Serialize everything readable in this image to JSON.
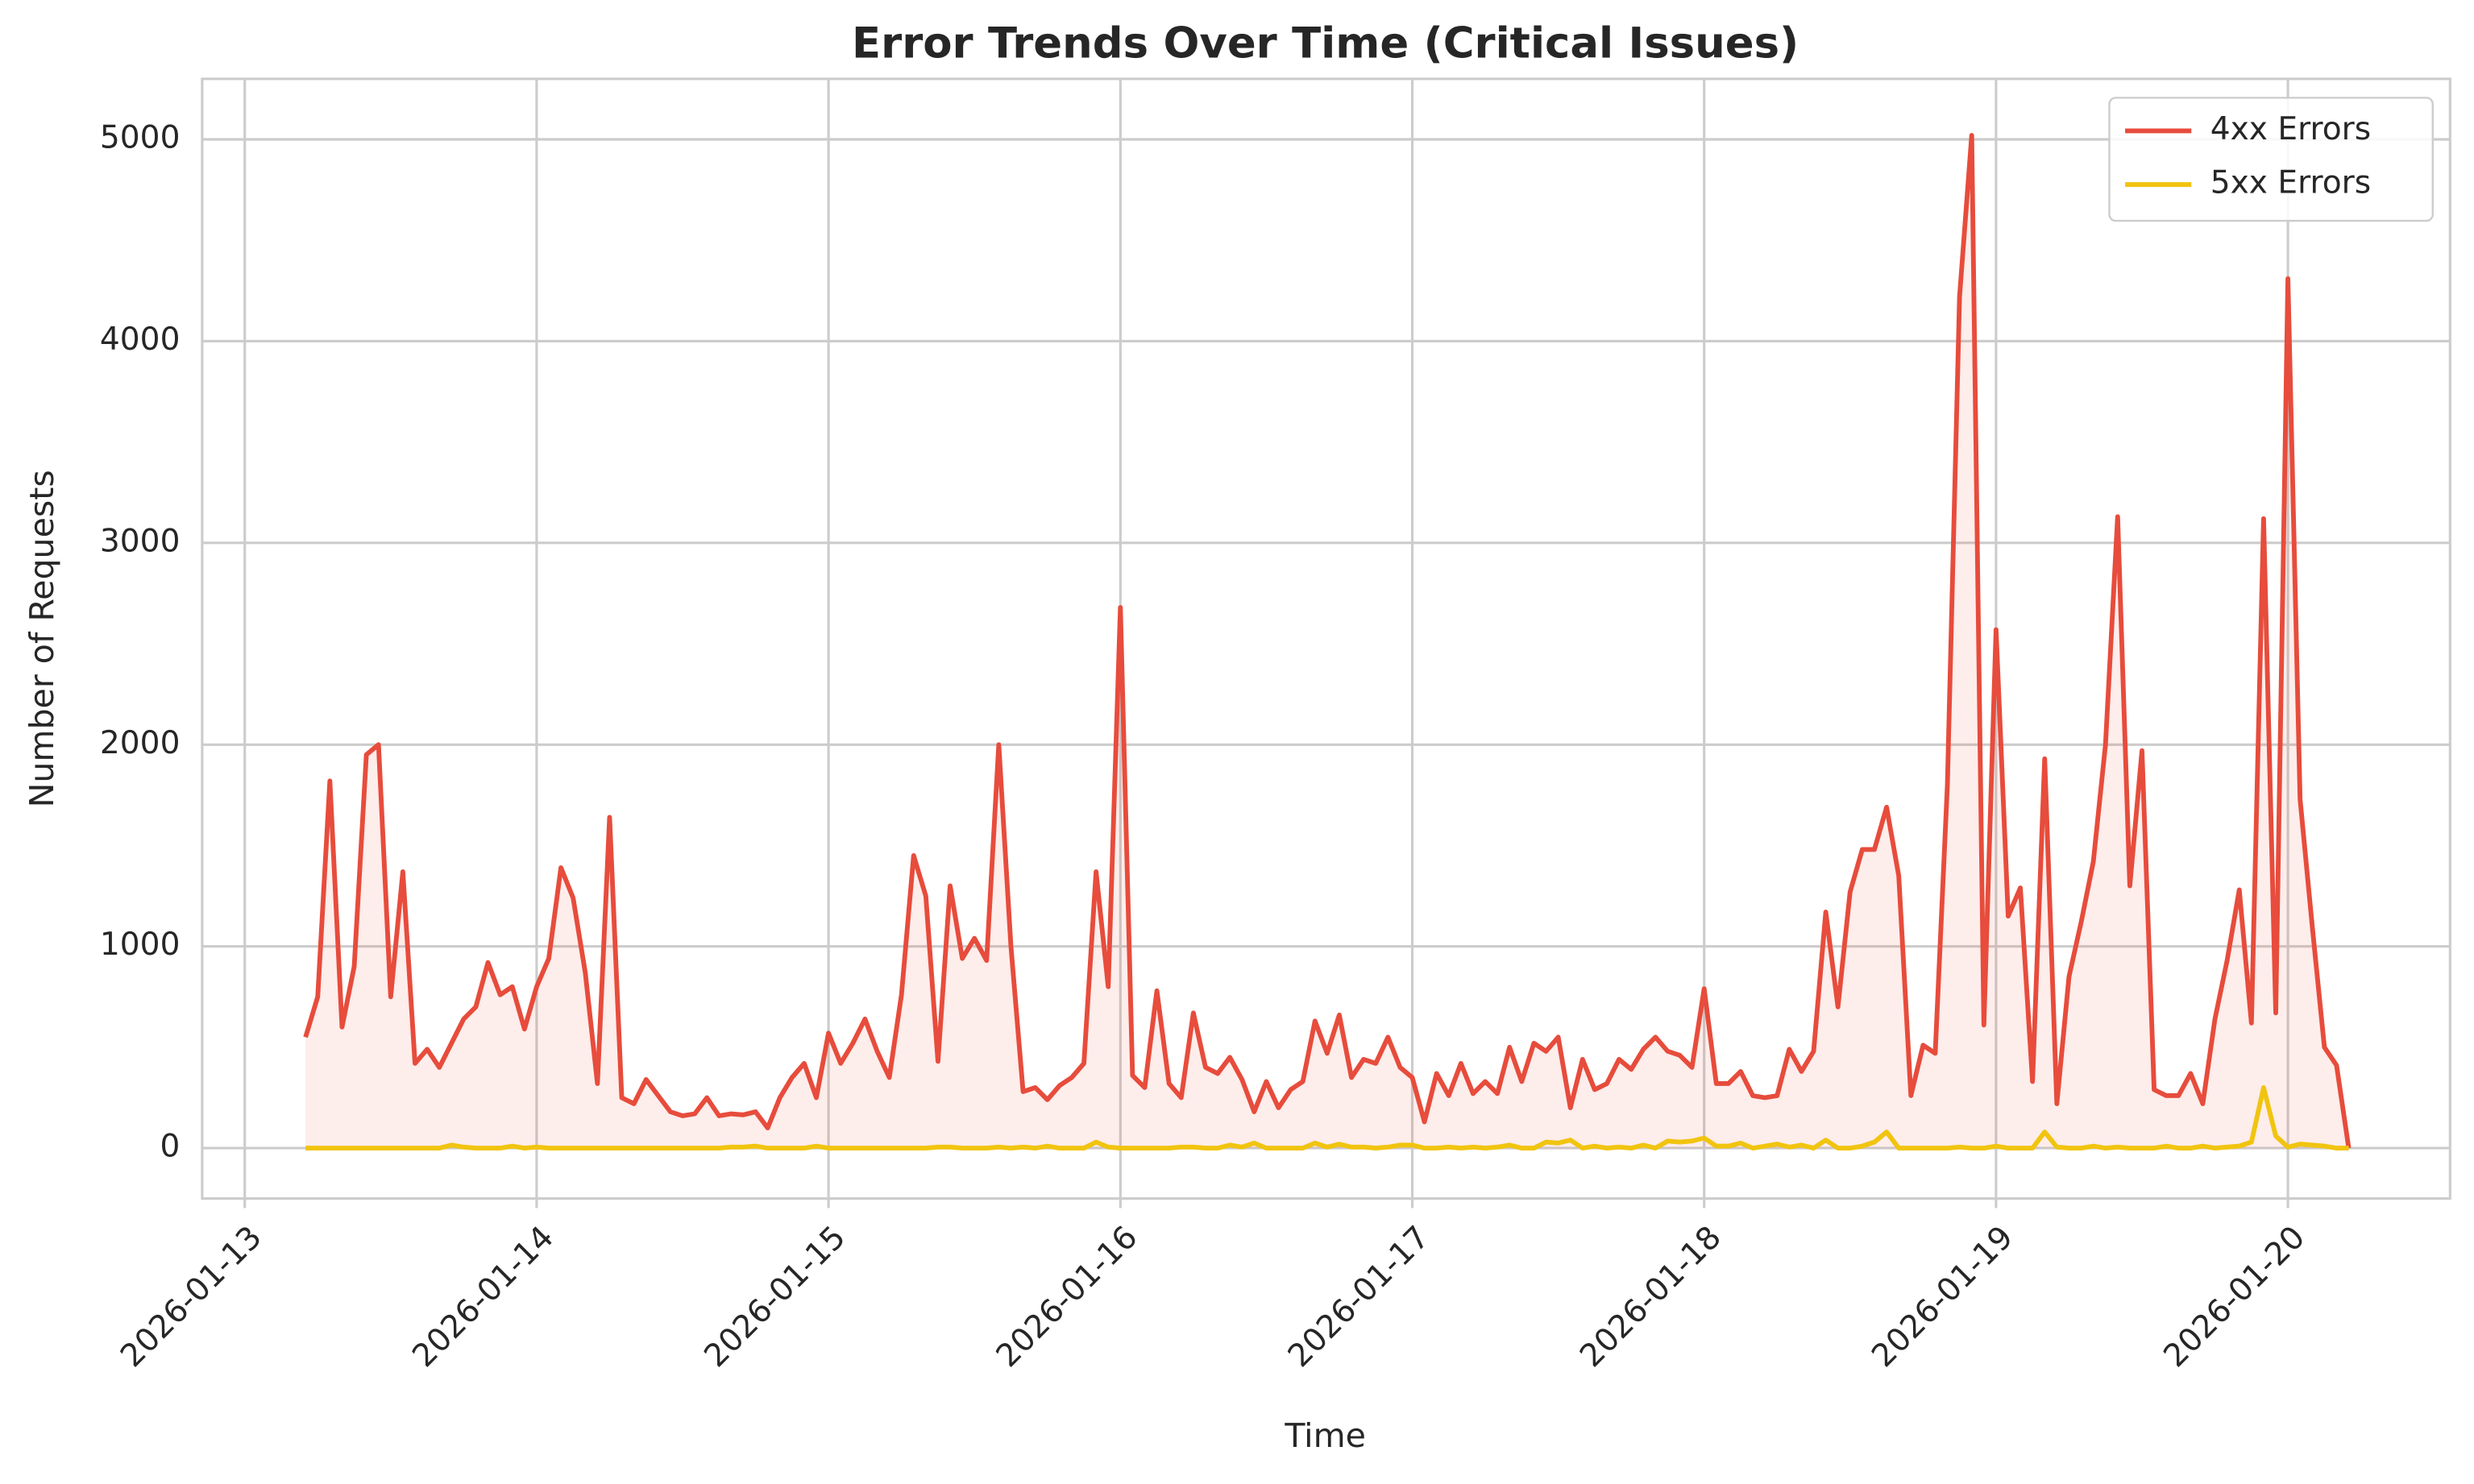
{
  "chart_data": {
    "type": "line",
    "title": "Error Trends Over Time (Critical Issues)",
    "x_label": "Time",
    "y_label": "Number of Requests",
    "x": [
      "2026-01-13 05:00",
      "2026-01-13 06:00",
      "2026-01-13 07:00",
      "2026-01-13 08:00",
      "2026-01-13 09:00",
      "2026-01-13 10:00",
      "2026-01-13 11:00",
      "2026-01-13 12:00",
      "2026-01-13 13:00",
      "2026-01-13 14:00",
      "2026-01-13 15:00",
      "2026-01-13 16:00",
      "2026-01-13 17:00",
      "2026-01-13 18:00",
      "2026-01-13 19:00",
      "2026-01-13 20:00",
      "2026-01-13 21:00",
      "2026-01-13 22:00",
      "2026-01-13 23:00",
      "2026-01-14 00:00",
      "2026-01-14 01:00",
      "2026-01-14 02:00",
      "2026-01-14 03:00",
      "2026-01-14 04:00",
      "2026-01-14 05:00",
      "2026-01-14 06:00",
      "2026-01-14 07:00",
      "2026-01-14 08:00",
      "2026-01-14 09:00",
      "2026-01-14 10:00",
      "2026-01-14 11:00",
      "2026-01-14 12:00",
      "2026-01-14 13:00",
      "2026-01-14 14:00",
      "2026-01-14 15:00",
      "2026-01-14 16:00",
      "2026-01-14 17:00",
      "2026-01-14 18:00",
      "2026-01-14 19:00",
      "2026-01-14 20:00",
      "2026-01-14 21:00",
      "2026-01-14 22:00",
      "2026-01-14 23:00",
      "2026-01-15 00:00",
      "2026-01-15 01:00",
      "2026-01-15 02:00",
      "2026-01-15 03:00",
      "2026-01-15 04:00",
      "2026-01-15 05:00",
      "2026-01-15 06:00",
      "2026-01-15 07:00",
      "2026-01-15 08:00",
      "2026-01-15 09:00",
      "2026-01-15 10:00",
      "2026-01-15 11:00",
      "2026-01-15 12:00",
      "2026-01-15 13:00",
      "2026-01-15 14:00",
      "2026-01-15 15:00",
      "2026-01-15 16:00",
      "2026-01-15 17:00",
      "2026-01-15 18:00",
      "2026-01-15 19:00",
      "2026-01-15 20:00",
      "2026-01-15 21:00",
      "2026-01-15 22:00",
      "2026-01-15 23:00",
      "2026-01-16 00:00",
      "2026-01-16 01:00",
      "2026-01-16 02:00",
      "2026-01-16 03:00",
      "2026-01-16 04:00",
      "2026-01-16 05:00",
      "2026-01-16 06:00",
      "2026-01-16 07:00",
      "2026-01-16 08:00",
      "2026-01-16 09:00",
      "2026-01-16 10:00",
      "2026-01-16 11:00",
      "2026-01-16 12:00",
      "2026-01-16 13:00",
      "2026-01-16 14:00",
      "2026-01-16 15:00",
      "2026-01-16 16:00",
      "2026-01-16 17:00",
      "2026-01-16 18:00",
      "2026-01-16 19:00",
      "2026-01-16 20:00",
      "2026-01-16 21:00",
      "2026-01-16 22:00",
      "2026-01-16 23:00",
      "2026-01-17 00:00",
      "2026-01-17 01:00",
      "2026-01-17 02:00",
      "2026-01-17 03:00",
      "2026-01-17 04:00",
      "2026-01-17 05:00",
      "2026-01-17 06:00",
      "2026-01-17 07:00",
      "2026-01-17 08:00",
      "2026-01-17 09:00",
      "2026-01-17 10:00",
      "2026-01-17 11:00",
      "2026-01-17 12:00",
      "2026-01-17 13:00",
      "2026-01-17 14:00",
      "2026-01-17 15:00",
      "2026-01-17 16:00",
      "2026-01-17 17:00",
      "2026-01-17 18:00",
      "2026-01-17 19:00",
      "2026-01-17 20:00",
      "2026-01-17 21:00",
      "2026-01-17 22:00",
      "2026-01-17 23:00",
      "2026-01-18 00:00",
      "2026-01-18 01:00",
      "2026-01-18 02:00",
      "2026-01-18 03:00",
      "2026-01-18 04:00",
      "2026-01-18 05:00",
      "2026-01-18 06:00",
      "2026-01-18 07:00",
      "2026-01-18 08:00",
      "2026-01-18 09:00",
      "2026-01-18 10:00",
      "2026-01-18 11:00",
      "2026-01-18 12:00",
      "2026-01-18 13:00",
      "2026-01-18 14:00",
      "2026-01-18 15:00",
      "2026-01-18 16:00",
      "2026-01-18 17:00",
      "2026-01-18 18:00",
      "2026-01-18 19:00",
      "2026-01-18 20:00",
      "2026-01-18 21:00",
      "2026-01-18 22:00",
      "2026-01-18 23:00",
      "2026-01-19 00:00",
      "2026-01-19 01:00",
      "2026-01-19 02:00",
      "2026-01-19 03:00",
      "2026-01-19 04:00",
      "2026-01-19 05:00",
      "2026-01-19 06:00",
      "2026-01-19 07:00",
      "2026-01-19 08:00",
      "2026-01-19 09:00",
      "2026-01-19 10:00",
      "2026-01-19 11:00",
      "2026-01-19 12:00",
      "2026-01-19 13:00",
      "2026-01-19 14:00",
      "2026-01-19 15:00",
      "2026-01-19 16:00",
      "2026-01-19 17:00",
      "2026-01-19 18:00",
      "2026-01-19 19:00",
      "2026-01-19 20:00",
      "2026-01-19 21:00",
      "2026-01-19 22:00",
      "2026-01-19 23:00",
      "2026-01-20 00:00",
      "2026-01-20 01:00",
      "2026-01-20 02:00",
      "2026-01-20 03:00",
      "2026-01-20 04:00",
      "2026-01-20 05:00"
    ],
    "series": [
      {
        "name": "4xx Errors",
        "color": "#e74c3c",
        "fill": true,
        "values": [
          550,
          750,
          1820,
          600,
          900,
          1950,
          2000,
          750,
          1370,
          420,
          490,
          400,
          520,
          640,
          700,
          920,
          760,
          800,
          590,
          800,
          940,
          1390,
          1240,
          870,
          320,
          1640,
          250,
          220,
          340,
          260,
          180,
          160,
          170,
          250,
          160,
          170,
          165,
          180,
          100,
          250,
          350,
          420,
          250,
          570,
          420,
          520,
          640,
          480,
          350,
          760,
          1450,
          1250,
          430,
          1300,
          940,
          1040,
          930,
          2000,
          1000,
          280,
          300,
          240,
          310,
          350,
          420,
          1370,
          800,
          2680,
          360,
          300,
          780,
          320,
          250,
          670,
          400,
          370,
          450,
          340,
          180,
          330,
          200,
          290,
          330,
          630,
          470,
          660,
          350,
          440,
          420,
          550,
          400,
          350,
          130,
          370,
          260,
          420,
          270,
          330,
          270,
          500,
          330,
          520,
          480,
          550,
          200,
          440,
          290,
          320,
          440,
          390,
          490,
          550,
          480,
          460,
          400,
          790,
          320,
          320,
          380,
          260,
          250,
          260,
          490,
          380,
          480,
          1170,
          700,
          1270,
          1480,
          1480,
          1690,
          1350,
          260,
          510,
          470,
          1800,
          4220,
          5020,
          610,
          2570,
          1150,
          1290,
          330,
          1930,
          220,
          850,
          1120,
          1420,
          2000,
          3130,
          1300,
          1970,
          290,
          260,
          260,
          370,
          220,
          640,
          930,
          1280,
          620,
          3120,
          670,
          4310,
          1730,
          1100,
          500,
          410,
          0
        ]
      },
      {
        "name": "5xx Errors",
        "color": "#f1c40f",
        "fill": false,
        "values": [
          0,
          0,
          0,
          0,
          0,
          0,
          0,
          0,
          0,
          0,
          0,
          0,
          15,
          5,
          0,
          0,
          0,
          10,
          0,
          5,
          0,
          0,
          0,
          0,
          0,
          0,
          0,
          0,
          0,
          0,
          0,
          0,
          0,
          0,
          0,
          5,
          5,
          10,
          0,
          0,
          0,
          0,
          10,
          0,
          0,
          0,
          0,
          0,
          0,
          0,
          0,
          0,
          5,
          5,
          0,
          0,
          0,
          5,
          0,
          5,
          0,
          10,
          0,
          0,
          0,
          30,
          5,
          0,
          0,
          0,
          0,
          0,
          5,
          5,
          0,
          0,
          15,
          5,
          25,
          0,
          0,
          0,
          0,
          25,
          5,
          20,
          5,
          5,
          0,
          5,
          15,
          15,
          0,
          0,
          5,
          0,
          5,
          0,
          5,
          15,
          0,
          0,
          30,
          25,
          40,
          0,
          10,
          0,
          5,
          0,
          15,
          0,
          35,
          30,
          35,
          50,
          10,
          10,
          25,
          0,
          10,
          20,
          5,
          15,
          0,
          40,
          0,
          0,
          10,
          30,
          80,
          0,
          0,
          0,
          0,
          0,
          5,
          0,
          0,
          10,
          0,
          0,
          0,
          80,
          5,
          0,
          0,
          10,
          0,
          5,
          0,
          0,
          0,
          10,
          0,
          0,
          10,
          0,
          5,
          10,
          30,
          300,
          60,
          5,
          20,
          15,
          10,
          0,
          0
        ]
      }
    ],
    "xlim": [
      "2026-01-12 20:30",
      "2026-01-20 13:20"
    ],
    "xticks": [
      "2026-01-13",
      "2026-01-14",
      "2026-01-15",
      "2026-01-16",
      "2026-01-17",
      "2026-01-18",
      "2026-01-19",
      "2026-01-20"
    ],
    "ylim": [
      -250,
      5300
    ],
    "yticks": [
      0,
      1000,
      2000,
      3000,
      4000,
      5000
    ],
    "grid": true,
    "legend": "upper right"
  }
}
